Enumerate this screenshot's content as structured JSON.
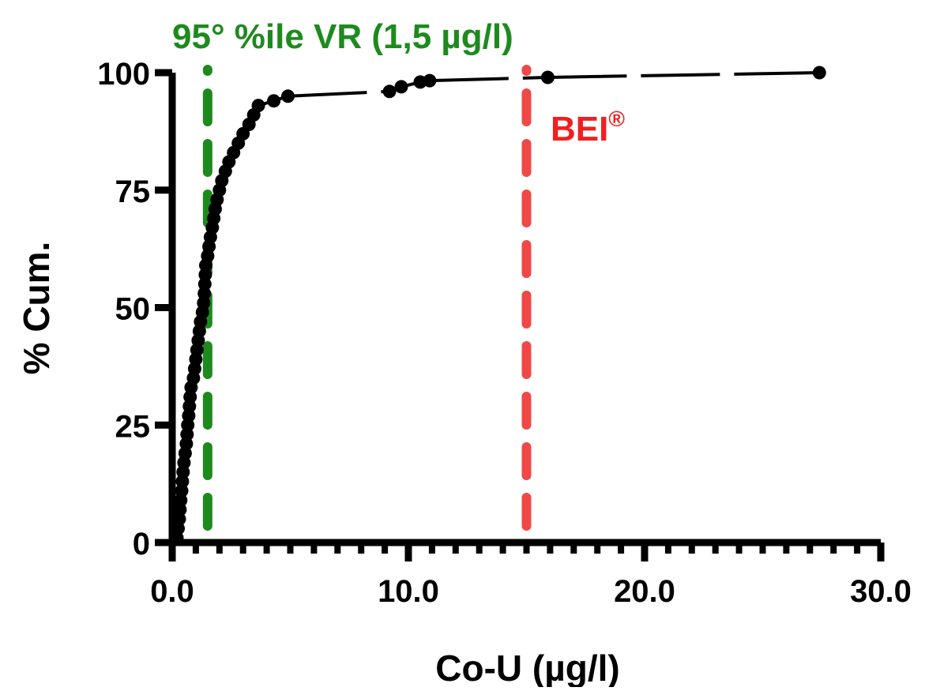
{
  "colors": {
    "axis": "#000000",
    "data": "#000000",
    "reference_line": "#1e8a1e",
    "bei_line": "#f04848",
    "reference_text": "#1e8a1e",
    "bei_text": "#f02020"
  },
  "chart_data": {
    "type": "scatter",
    "xlabel": "Co-U (µg/l)",
    "ylabel": "% Cum.",
    "xlim": [
      0,
      30
    ],
    "ylim": [
      0,
      100
    ],
    "x_ticks": [
      0,
      10,
      20,
      30
    ],
    "x_tick_labels": [
      "0.0",
      "10.0",
      "20.0",
      "30.0"
    ],
    "x_minor_ticks": [
      1,
      2,
      3,
      4,
      5,
      6,
      7,
      8,
      9,
      11,
      12,
      13,
      14,
      15,
      16,
      17,
      18,
      19,
      21,
      22,
      23,
      24,
      25,
      26,
      27,
      28,
      29
    ],
    "y_ticks": [
      0,
      25,
      50,
      75,
      100
    ],
    "y_tick_labels": [
      "0",
      "25",
      "50",
      "75",
      "100"
    ],
    "grid": false,
    "series": [
      {
        "points": [
          [
            0.2,
            1
          ],
          [
            0.25,
            3
          ],
          [
            0.3,
            5
          ],
          [
            0.33,
            7
          ],
          [
            0.36,
            9
          ],
          [
            0.4,
            11
          ],
          [
            0.43,
            13
          ],
          [
            0.46,
            15
          ],
          [
            0.5,
            17
          ],
          [
            0.55,
            19
          ],
          [
            0.6,
            21
          ],
          [
            0.63,
            23
          ],
          [
            0.66,
            25
          ],
          [
            0.7,
            27
          ],
          [
            0.73,
            29
          ],
          [
            0.76,
            31
          ],
          [
            0.8,
            33
          ],
          [
            0.9,
            35
          ],
          [
            0.95,
            37
          ],
          [
            1.0,
            39
          ],
          [
            1.05,
            41
          ],
          [
            1.1,
            43
          ],
          [
            1.15,
            45
          ],
          [
            1.2,
            47
          ],
          [
            1.28,
            49
          ],
          [
            1.33,
            51
          ],
          [
            1.36,
            53
          ],
          [
            1.38,
            55
          ],
          [
            1.4,
            57
          ],
          [
            1.42,
            59
          ],
          [
            1.5,
            61
          ],
          [
            1.56,
            63
          ],
          [
            1.62,
            65
          ],
          [
            1.7,
            67
          ],
          [
            1.76,
            69
          ],
          [
            1.82,
            71
          ],
          [
            1.9,
            73
          ],
          [
            2.0,
            75
          ],
          [
            2.1,
            77
          ],
          [
            2.25,
            79
          ],
          [
            2.4,
            81
          ],
          [
            2.6,
            83
          ],
          [
            2.8,
            85
          ],
          [
            3.0,
            87
          ],
          [
            3.25,
            89
          ],
          [
            3.45,
            91
          ],
          [
            3.65,
            93
          ],
          [
            4.3,
            94
          ],
          [
            4.9,
            95
          ],
          [
            9.2,
            96
          ],
          [
            9.7,
            97
          ],
          [
            10.5,
            98
          ],
          [
            10.9,
            98.3
          ],
          [
            15.9,
            99
          ],
          [
            27.4,
            100
          ]
        ]
      }
    ],
    "reference_lines": [
      {
        "x": 1.5,
        "label": "95° %ile VR (1,5 µg/l)"
      },
      {
        "x": 15,
        "label": "BEI",
        "label_superscript": "®"
      }
    ]
  }
}
